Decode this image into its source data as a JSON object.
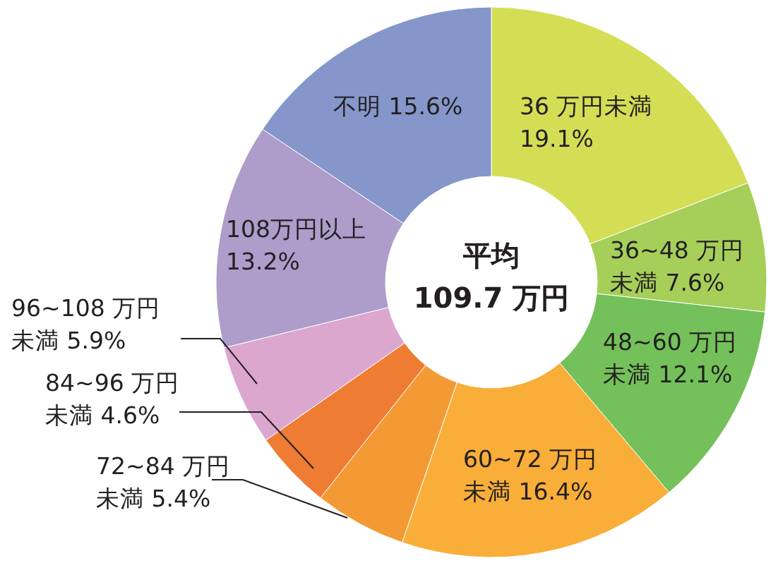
{
  "chart_data": {
    "type": "donut",
    "title": "平均",
    "subtitle": "109.7 万円",
    "categories": [
      "36 万円未満",
      "36~48 万円未満",
      "48~60 万円未満",
      "60~72 万円未満",
      "72~84 万円未満",
      "84~96 万円未満",
      "96~108 万円未満",
      "108万円以上",
      "不明"
    ],
    "values": [
      19.1,
      7.6,
      12.1,
      16.4,
      5.4,
      4.6,
      5.9,
      13.2,
      15.6
    ],
    "value_labels": [
      "19.1%",
      "7.6%",
      "12.1%",
      "16.4%",
      "5.4%",
      "4.6%",
      "5.9%",
      "13.2%",
      "15.6%"
    ],
    "colors": [
      "#d4de55",
      "#a6cf5a",
      "#74c05a",
      "#f8ae38",
      "#f39a35",
      "#ee7c33",
      "#dca7cf",
      "#ae9ccb",
      "#8596ca"
    ]
  }
}
